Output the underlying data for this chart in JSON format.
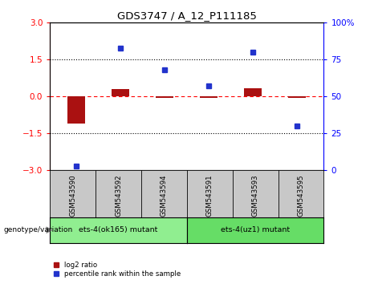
{
  "title": "GDS3747 / A_12_P111185",
  "samples": [
    "GSM543590",
    "GSM543592",
    "GSM543594",
    "GSM543591",
    "GSM543593",
    "GSM543595"
  ],
  "log2_ratio": [
    -1.1,
    0.3,
    -0.05,
    -0.05,
    0.35,
    -0.05
  ],
  "percentile_rank": [
    3,
    83,
    68,
    57,
    80,
    30
  ],
  "group1_label": "ets-4(ok165) mutant",
  "group2_label": "ets-4(uz1) mutant",
  "group1_color": "#90EE90",
  "group2_color": "#66DD66",
  "bar_color": "#AA1111",
  "dot_color": "#2233CC",
  "left_ylim": [
    -3,
    3
  ],
  "right_ylim": [
    0,
    100
  ],
  "left_yticks": [
    -3,
    -1.5,
    0,
    1.5,
    3
  ],
  "right_yticks": [
    0,
    25,
    50,
    75,
    100
  ],
  "hline_dotted_vals": [
    1.5,
    -1.5
  ],
  "bg_color_plot": "#FFFFFF",
  "bg_color_sample_header": "#C8C8C8",
  "legend_log2_label": "log2 ratio",
  "legend_pct_label": "percentile rank within the sample",
  "genotype_label": "genotype/variation",
  "n_group1": 3,
  "n_group2": 3
}
